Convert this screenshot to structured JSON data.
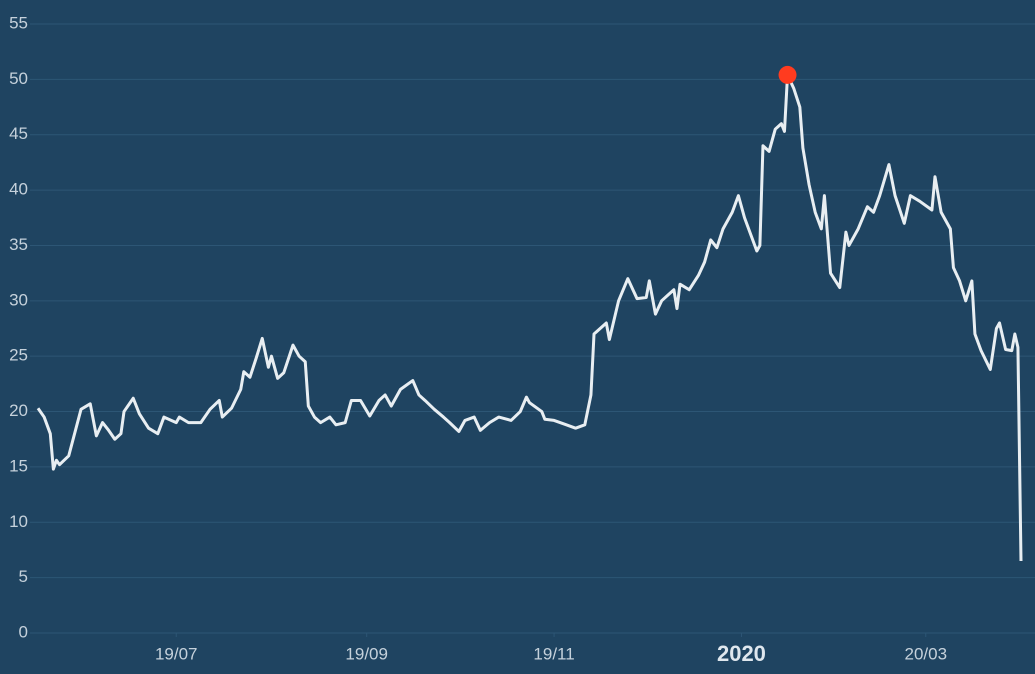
{
  "chart_data": {
    "type": "line",
    "x": [
      0,
      2,
      4,
      5,
      6,
      7,
      10,
      14,
      17,
      19,
      21,
      23,
      25,
      27,
      28,
      31,
      33,
      36,
      39,
      41,
      45,
      46,
      49,
      53,
      56,
      59,
      60,
      63,
      66,
      67,
      69,
      71,
      73,
      75,
      76,
      78,
      80,
      83,
      85,
      87,
      88,
      90,
      92,
      95,
      97,
      100,
      102,
      105,
      108,
      111,
      113,
      115,
      118,
      122,
      124,
      126,
      129,
      132,
      134,
      137,
      139,
      142,
      144,
      147,
      150,
      154,
      157,
      159,
      160,
      164,
      165,
      168,
      172,
      175,
      178,
      180,
      181,
      185,
      186,
      189,
      192,
      195,
      198,
      199,
      201,
      203,
      205,
      207,
      208,
      209,
      212,
      215,
      217,
      219,
      221,
      223,
      226,
      228,
      230,
      232,
      234,
      235,
      236,
      238,
      240,
      242,
      243,
      244,
      246,
      248,
      249,
      251,
      253,
      255,
      256,
      258,
      261,
      263,
      264,
      267,
      270,
      272,
      274,
      277,
      279,
      282,
      284,
      287,
      291,
      292,
      294,
      297,
      298,
      300,
      302,
      304,
      305,
      307,
      310,
      312,
      313,
      315,
      317,
      318,
      319,
      320
    ],
    "series": [
      {
        "color": "#e8eef2",
        "values": [
          20.3,
          19.5,
          18,
          14.8,
          15.6,
          15.2,
          16,
          20.2,
          20.7,
          17.8,
          19,
          18.3,
          17.5,
          18,
          20,
          21.2,
          19.8,
          18.5,
          18,
          19.5,
          19,
          19.5,
          19,
          19,
          20.2,
          21,
          19.5,
          20.3,
          22,
          23.6,
          23.1,
          24.8,
          26.6,
          24,
          25,
          23,
          23.5,
          26,
          25,
          24.5,
          20.5,
          19.5,
          19,
          19.5,
          18.8,
          19,
          21,
          21,
          19.6,
          21,
          21.5,
          20.5,
          22,
          22.8,
          21.5,
          21,
          20.2,
          19.5,
          19,
          18.2,
          19.2,
          19.5,
          18.3,
          19,
          19.5,
          19.2,
          20,
          21.3,
          20.8,
          20,
          19.3,
          19.2,
          18.8,
          18.5,
          18.8,
          21.5,
          27,
          28,
          26.5,
          30,
          32,
          30.2,
          30.3,
          31.8,
          28.8,
          30,
          30.5,
          31,
          29.3,
          31.5,
          31,
          32.3,
          33.5,
          35.5,
          34.8,
          36.5,
          38,
          39.5,
          37.5,
          36,
          34.5,
          35,
          44,
          43.5,
          45.5,
          46,
          45.3,
          50.4,
          49.2,
          47.5,
          43.8,
          40.5,
          38,
          36.5,
          39.5,
          32.5,
          31.2,
          36.2,
          35,
          36.5,
          38.5,
          38,
          39.5,
          42.3,
          39.5,
          37,
          39.5,
          39,
          38.2,
          41.2,
          38,
          36.5,
          33,
          31.8,
          30,
          31.8,
          27,
          25.5,
          23.8,
          27.5,
          28,
          25.6,
          25.5,
          27,
          25.8,
          6.5
        ]
      }
    ],
    "highlight_color": "#ff3b1f",
    "xlim": [
      0,
      320
    ],
    "xticks": [
      {
        "value": 45,
        "label": "19/07"
      },
      {
        "value": 107,
        "label": "19/09"
      },
      {
        "value": 168,
        "label": "19/11"
      },
      {
        "value": 229,
        "label": "2020"
      },
      {
        "value": 289,
        "label": "20/03"
      }
    ],
    "ylim": [
      0,
      55
    ],
    "yticks": [
      0,
      5,
      10,
      15,
      20,
      25,
      30,
      35,
      40,
      45,
      50,
      55
    ],
    "grid": true
  }
}
